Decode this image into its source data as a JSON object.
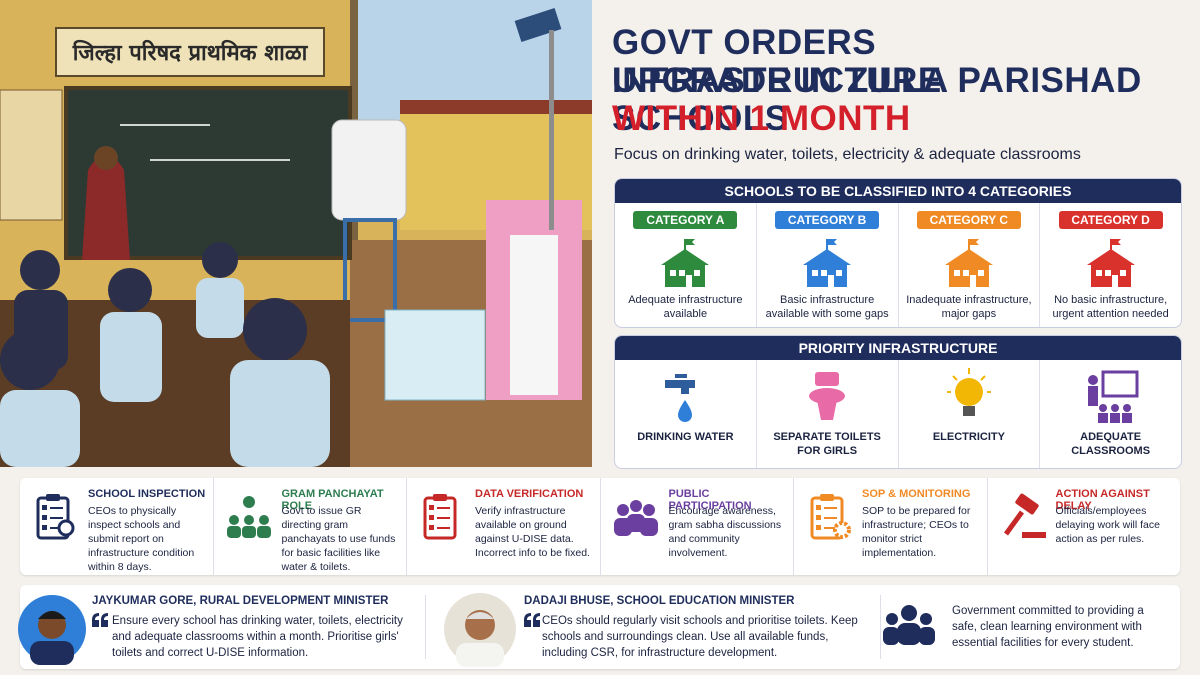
{
  "photo": {
    "signboard": "जिल्हा परिषद प्राथमिक शाळा"
  },
  "header": {
    "title_line_1": "Govt Orders Infrastructure",
    "title_line_2": "Upgrade in Zilla Parishad Schools",
    "title_highlight": "Within 1 Month",
    "subtitle": "Focus on drinking water, toilets, electricity & adequate classrooms"
  },
  "categories_panel": {
    "title": "SCHOOLS TO BE CLASSIFIED INTO 4 CATEGORIES",
    "items": [
      {
        "label": "CATEGORY A",
        "description": "Adequate infrastructure available"
      },
      {
        "label": "CATEGORY B",
        "description": "Basic infrastructure available with some gaps"
      },
      {
        "label": "CATEGORY C",
        "description": "Inadequate infrastructure, major gaps"
      },
      {
        "label": "CATEGORY D",
        "description": "No basic infrastructure, urgent attention needed"
      }
    ]
  },
  "priority_panel": {
    "title": "PRIORITY INFRASTRUCTURE",
    "items": [
      {
        "label": "DRINKING WATER"
      },
      {
        "label": "SEPARATE TOILETS FOR GIRLS"
      },
      {
        "label": "ELECTRICITY"
      },
      {
        "label": "ADEQUATE CLASSROOMS"
      }
    ]
  },
  "actions": [
    {
      "title": "SCHOOL INSPECTION",
      "text": "CEOs to physically inspect schools and submit report on infrastructure condition within 8 days."
    },
    {
      "title": "GRAM PANCHAYAT ROLE",
      "text": "Govt to issue GR directing gram panchayats to use funds for basic facilities like water & toilets."
    },
    {
      "title": "DATA VERIFICATION",
      "text": "Verify infrastructure available on ground against U-DISE data. Incorrect info to be fixed."
    },
    {
      "title": "PUBLIC PARTICIPATION",
      "text": "Encourage awareness, gram sabha discussions and community involvement."
    },
    {
      "title": "SOP & MONITORING",
      "text": "SOP to be prepared for infrastructure; CEOs to monitor strict implementation."
    },
    {
      "title": "ACTION AGAINST DELAY",
      "text": "Officials/employees delaying work will face action as per rules."
    }
  ],
  "quotes": [
    {
      "name": "JAYKUMAR GORE, RURAL DEVELOPMENT MINISTER",
      "quote": "Ensure every school has drinking water, toilets, electricity and adequate classrooms within a month. Prioritise girls' toilets and correct U-DISE information."
    },
    {
      "name": "DADAJI BHUSE, SCHOOL EDUCATION MINISTER",
      "quote": "CEOs should regularly visit schools and prioritise toilets. Keep schools and surroundings clean. Use all available funds, including CSR, for infrastructure development."
    }
  ],
  "closing": "Government committed to providing a safe, clean learning environment with essential facilities for every student."
}
